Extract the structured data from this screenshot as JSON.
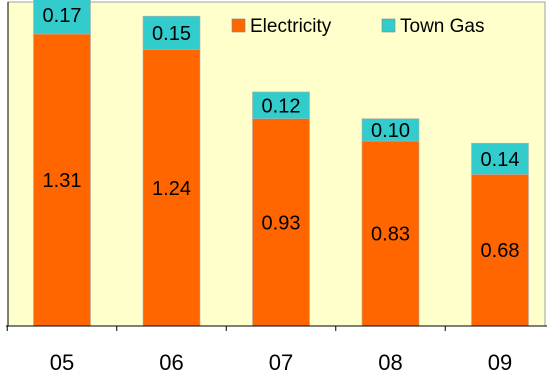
{
  "chart_data": {
    "type": "bar",
    "stacked": true,
    "categories": [
      "05",
      "06",
      "07",
      "08",
      "09"
    ],
    "series": [
      {
        "name": "Electricity",
        "color": "#ff6600",
        "values": [
          1.31,
          1.24,
          0.93,
          0.83,
          0.68
        ]
      },
      {
        "name": "Town Gas",
        "color": "#33cccc",
        "values": [
          0.17,
          0.15,
          0.12,
          0.1,
          0.14
        ]
      }
    ],
    "value_labels": {
      "Electricity": [
        "1.31",
        "1.24",
        "0.93",
        "0.83",
        "0.68"
      ],
      "Town Gas": [
        "0.17",
        "0.15",
        "0.12",
        "0.10",
        "0.14"
      ]
    },
    "ylim": [
      0,
      1.6
    ],
    "grid": false,
    "legend_position": "top-right",
    "plot_background": "#ffffcc",
    "plot_border": "#a0a0a0"
  }
}
